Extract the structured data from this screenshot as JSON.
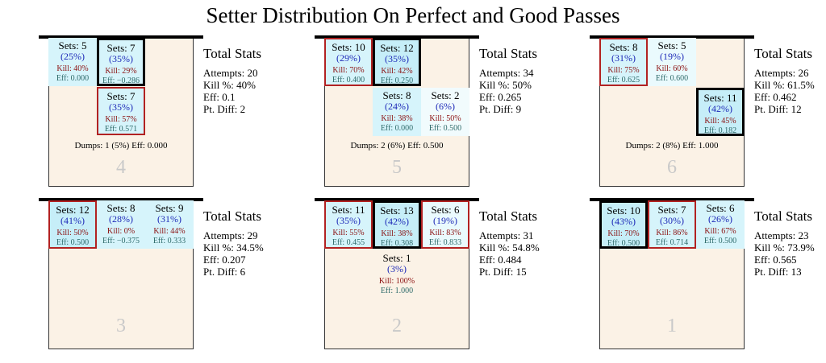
{
  "title": "Setter Distribution On Perfect and Good Passes",
  "colors": {
    "court": "#fbf2e6",
    "highlight": "#d6f4fb",
    "kill": "#8b1010",
    "pct": "#1f2bb8",
    "eff": "#2e6a6a",
    "red_border": "#b22222",
    "zone_number": "#c9c9c9"
  },
  "panels": [
    {
      "zone": "4",
      "dumps": "Dumps: 1 (5%) Eff: 0.000",
      "stats": {
        "title": "Total Stats",
        "attempts": "Attempts: 20",
        "kill": "Kill %: 40%",
        "eff": "Eff: 0.1",
        "pt_diff": "Pt. Diff: 2"
      },
      "cells": [
        {
          "sets": "Sets: 5",
          "pct": "(25%)",
          "kill": "Kill: 40%",
          "eff": "Eff: 0.000",
          "bg": "#d6f4fb"
        },
        {
          "sets": "Sets: 7",
          "pct": "(35%)",
          "kill": "Kill: 29%",
          "eff": "Eff: −0.286",
          "bg": "#d6f4fb"
        },
        {
          "sets": "Sets: 7",
          "pct": "(35%)",
          "kill": "Kill: 57%",
          "eff": "Eff: 0.571",
          "bg": "#d6f4fb"
        }
      ]
    },
    {
      "zone": "5",
      "dumps": "Dumps: 2 (6%) Eff: 0.500",
      "stats": {
        "title": "Total Stats",
        "attempts": "Attempts: 34",
        "kill": "Kill %: 50%",
        "eff": "Eff: 0.265",
        "pt_diff": "Pt. Diff: 9"
      },
      "cells": [
        {
          "sets": "Sets: 10",
          "pct": "(29%)",
          "kill": "Kill: 70%",
          "eff": "Eff: 0.400",
          "bg": "#d6f4fb"
        },
        {
          "sets": "Sets: 12",
          "pct": "(35%)",
          "kill": "Kill: 42%",
          "eff": "Eff: 0.250",
          "bg": "#c6eef8"
        },
        {
          "sets": "Sets: 8",
          "pct": "(24%)",
          "kill": "Kill: 38%",
          "eff": "Eff: 0.000",
          "bg": "#d6f4fb"
        },
        {
          "sets": "Sets: 2",
          "pct": "(6%)",
          "kill": "Kill: 50%",
          "eff": "Eff: 0.500",
          "bg": "#f1fbfd"
        }
      ]
    },
    {
      "zone": "6",
      "dumps": "Dumps: 2 (8%) Eff: 1.000",
      "stats": {
        "title": "Total Stats",
        "attempts": "Attempts: 26",
        "kill": "Kill %: 61.5%",
        "eff": "Eff: 0.462",
        "pt_diff": "Pt. Diff: 12"
      },
      "cells": [
        {
          "sets": "Sets: 8",
          "pct": "(31%)",
          "kill": "Kill: 75%",
          "eff": "Eff: 0.625",
          "bg": "#d6f4fb"
        },
        {
          "sets": "Sets: 5",
          "pct": "(19%)",
          "kill": "Kill: 60%",
          "eff": "Eff: 0.600",
          "bg": "#eafafd"
        },
        {
          "sets": "Sets: 11",
          "pct": "(42%)",
          "kill": "Kill: 45%",
          "eff": "Eff: 0.182",
          "bg": "#c6eef8"
        }
      ]
    },
    {
      "zone": "3",
      "dumps": "",
      "stats": {
        "title": "Total Stats",
        "attempts": "Attempts: 29",
        "kill": "Kill %: 34.5%",
        "eff": "Eff: 0.207",
        "pt_diff": "Pt. Diff: 6"
      },
      "cells": [
        {
          "sets": "Sets: 12",
          "pct": "(41%)",
          "kill": "Kill: 50%",
          "eff": "Eff: 0.500",
          "bg": "#c6eef8"
        },
        {
          "sets": "Sets: 8",
          "pct": "(28%)",
          "kill": "Kill: 0%",
          "eff": "Eff: −0.375",
          "bg": "#d6f4fb"
        },
        {
          "sets": "Sets: 9",
          "pct": "(31%)",
          "kill": "Kill: 44%",
          "eff": "Eff: 0.333",
          "bg": "#d6f4fb"
        }
      ]
    },
    {
      "zone": "2",
      "dumps": "",
      "stats": {
        "title": "Total Stats",
        "attempts": "Attempts: 31",
        "kill": "Kill %: 54.8%",
        "eff": "Eff: 0.484",
        "pt_diff": "Pt. Diff: 15"
      },
      "cells": [
        {
          "sets": "Sets: 11",
          "pct": "(35%)",
          "kill": "Kill: 55%",
          "eff": "Eff: 0.455",
          "bg": "#d6f4fb"
        },
        {
          "sets": "Sets: 13",
          "pct": "(42%)",
          "kill": "Kill: 38%",
          "eff": "Eff: 0.308",
          "bg": "#c6eef8"
        },
        {
          "sets": "Sets: 6",
          "pct": "(19%)",
          "kill": "Kill: 83%",
          "eff": "Eff: 0.833",
          "bg": "#eafafd"
        },
        {
          "sets": "Sets: 1",
          "pct": "(3%)",
          "kill": "Kill: 100%",
          "eff": "Eff: 1.000",
          "bg": "transparent"
        }
      ]
    },
    {
      "zone": "1",
      "dumps": "",
      "stats": {
        "title": "Total Stats",
        "attempts": "Attempts: 23",
        "kill": "Kill %: 73.9%",
        "eff": "Eff: 0.565",
        "pt_diff": "Pt. Diff: 13"
      },
      "cells": [
        {
          "sets": "Sets: 10",
          "pct": "(43%)",
          "kill": "Kill: 70%",
          "eff": "Eff: 0.500",
          "bg": "#c6eef8"
        },
        {
          "sets": "Sets: 7",
          "pct": "(30%)",
          "kill": "Kill: 86%",
          "eff": "Eff: 0.714",
          "bg": "#d6f4fb"
        },
        {
          "sets": "Sets: 6",
          "pct": "(26%)",
          "kill": "Kill: 67%",
          "eff": "Eff: 0.500",
          "bg": "#d6f4fb"
        }
      ]
    }
  ]
}
